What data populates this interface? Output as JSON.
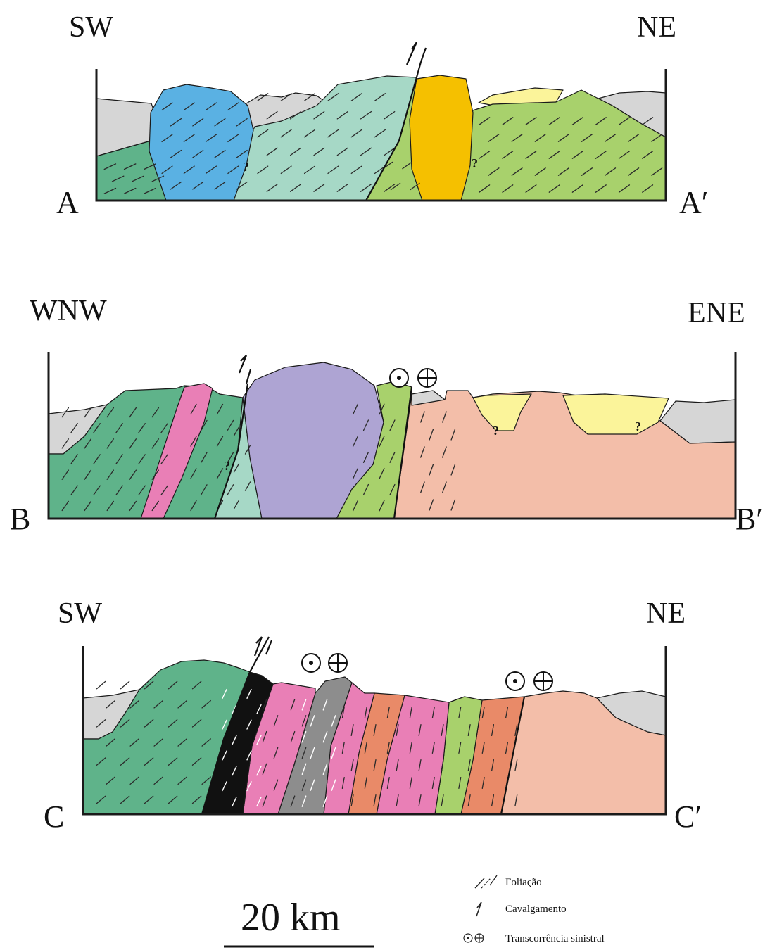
{
  "sections": [
    {
      "id": "A",
      "left_dir": "SW",
      "right_dir": "NE",
      "left_label": "A",
      "right_label": "A′"
    },
    {
      "id": "B",
      "left_dir": "WNW",
      "right_dir": "ENE",
      "left_label": "B",
      "right_label": "B′"
    },
    {
      "id": "C",
      "left_dir": "SW",
      "right_dir": "NE",
      "left_label": "C",
      "right_label": "C′"
    }
  ],
  "uncertain_mark": "?",
  "scale_bar": {
    "label": "20 km"
  },
  "legend": [
    {
      "icon": "foliation-icon",
      "label": "Foliação"
    },
    {
      "icon": "thrust-arrow-icon",
      "label": "Cavalgamento"
    },
    {
      "icon": "strike-slip-symbol-icon",
      "label": "Transcorrência sinistral"
    }
  ],
  "colors": {
    "gray": "#d6d6d6",
    "dark_green": "#5fb38a",
    "light_teal": "#a6d8c6",
    "blue": "#5ab1e3",
    "orange": "#f5c000",
    "yellow": "#fbf49a",
    "lime": "#a8d16c",
    "pink": "#e97fb6",
    "lavender": "#aea4d3",
    "salmon": "#f3bea9",
    "black": "#111111",
    "dark_gray": "#8d8d8d",
    "orange_red": "#e98a68"
  }
}
